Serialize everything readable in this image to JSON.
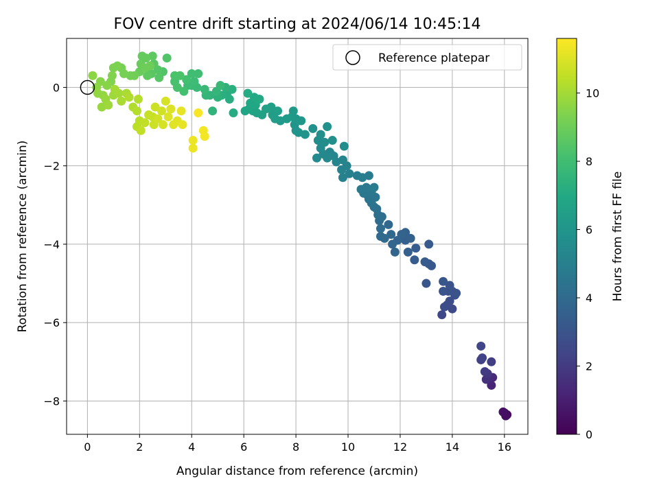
{
  "chart_data": {
    "type": "scatter",
    "title": "FOV centre drift starting at 2024/06/14 10:45:14",
    "xlabel": "Angular distance from reference (arcmin)",
    "ylabel": "Rotation from reference (arcmin)",
    "xlim": [
      -0.8,
      16.9
    ],
    "ylim": [
      -8.85,
      1.25
    ],
    "xticks": [
      0,
      2,
      4,
      6,
      8,
      10,
      12,
      14,
      16
    ],
    "yticks": [
      -8,
      -6,
      -4,
      -2,
      0
    ],
    "xtick_labels": [
      "0",
      "2",
      "4",
      "6",
      "8",
      "10",
      "12",
      "14",
      "16"
    ],
    "ytick_labels": [
      "−8",
      "−6",
      "−4",
      "−2",
      "0"
    ],
    "grid": true,
    "legend": {
      "position": "top-right",
      "entries": [
        "Reference platepar"
      ]
    },
    "reference_point": {
      "x": 0,
      "y": 0
    },
    "colorbar": {
      "label": "Hours from first FF file",
      "colormap": "viridis",
      "range": [
        0,
        11.6
      ],
      "ticks": [
        0,
        2,
        4,
        6,
        8,
        10
      ],
      "tick_labels": [
        "0",
        "2",
        "4",
        "6",
        "8",
        "10"
      ]
    },
    "series": [
      {
        "columns": [
          "x",
          "y",
          "hours"
        ],
        "points": [
          [
            16.0,
            -8.3,
            0.2
          ],
          [
            16.1,
            -8.35,
            0.3
          ],
          [
            16.05,
            -8.38,
            0.4
          ],
          [
            15.95,
            -8.28,
            0.5
          ],
          [
            15.5,
            -7.6,
            1.2
          ],
          [
            15.55,
            -7.4,
            1.4
          ],
          [
            15.3,
            -7.45,
            1.6
          ],
          [
            15.35,
            -7.3,
            1.8
          ],
          [
            15.25,
            -7.25,
            2.0
          ],
          [
            15.5,
            -7.0,
            2.1
          ],
          [
            15.1,
            -6.95,
            2.2
          ],
          [
            15.15,
            -6.9,
            2.3
          ],
          [
            15.1,
            -6.6,
            2.4
          ],
          [
            13.6,
            -5.8,
            2.5
          ],
          [
            13.8,
            -5.55,
            2.6
          ],
          [
            14.0,
            -5.65,
            2.6
          ],
          [
            13.7,
            -5.6,
            2.7
          ],
          [
            13.9,
            -5.45,
            2.7
          ],
          [
            14.1,
            -5.3,
            2.8
          ],
          [
            13.85,
            -5.2,
            2.8
          ],
          [
            14.0,
            -5.2,
            2.9
          ],
          [
            14.15,
            -5.25,
            2.9
          ],
          [
            13.65,
            -5.2,
            3.0
          ],
          [
            13.9,
            -5.05,
            3.0
          ],
          [
            13.65,
            -4.95,
            3.1
          ],
          [
            13.0,
            -5.0,
            3.1
          ],
          [
            13.1,
            -4.5,
            3.2
          ],
          [
            13.2,
            -4.55,
            3.2
          ],
          [
            12.95,
            -4.45,
            3.3
          ],
          [
            13.1,
            -4.0,
            3.3
          ],
          [
            12.55,
            -4.4,
            3.4
          ],
          [
            12.6,
            -4.1,
            3.4
          ],
          [
            12.3,
            -4.2,
            3.5
          ],
          [
            12.2,
            -3.9,
            3.5
          ],
          [
            12.4,
            -3.85,
            3.6
          ],
          [
            12.2,
            -3.7,
            3.6
          ],
          [
            12.05,
            -3.75,
            3.7
          ],
          [
            11.9,
            -3.9,
            3.7
          ],
          [
            11.8,
            -4.2,
            3.8
          ],
          [
            11.7,
            -4.0,
            3.8
          ],
          [
            11.65,
            -3.75,
            3.9
          ],
          [
            11.55,
            -3.5,
            3.9
          ],
          [
            11.4,
            -3.85,
            4.0
          ],
          [
            11.25,
            -3.8,
            4.0
          ],
          [
            11.25,
            -3.6,
            4.1
          ],
          [
            11.2,
            -3.4,
            4.1
          ],
          [
            11.3,
            -3.3,
            4.2
          ],
          [
            11.15,
            -3.25,
            4.2
          ],
          [
            11.1,
            -3.1,
            4.3
          ],
          [
            11.0,
            -3.05,
            4.3
          ],
          [
            10.9,
            -2.95,
            4.4
          ],
          [
            10.8,
            -2.85,
            4.4
          ],
          [
            11.05,
            -2.8,
            4.5
          ],
          [
            10.75,
            -2.75,
            4.5
          ],
          [
            10.6,
            -2.7,
            4.6
          ],
          [
            10.9,
            -2.65,
            4.6
          ],
          [
            10.5,
            -2.6,
            4.7
          ],
          [
            10.7,
            -2.55,
            4.7
          ],
          [
            11.0,
            -2.55,
            4.8
          ],
          [
            10.8,
            -2.25,
            4.8
          ],
          [
            10.55,
            -2.3,
            4.9
          ],
          [
            10.35,
            -2.25,
            4.9
          ],
          [
            10.05,
            -2.2,
            5.0
          ],
          [
            9.8,
            -2.3,
            5.0
          ],
          [
            9.75,
            -2.1,
            5.1
          ],
          [
            9.95,
            -2.0,
            5.1
          ],
          [
            9.8,
            -1.85,
            5.2
          ],
          [
            9.55,
            -1.9,
            5.2
          ],
          [
            9.45,
            -1.75,
            5.3
          ],
          [
            9.3,
            -1.65,
            5.3
          ],
          [
            9.2,
            -1.8,
            5.4
          ],
          [
            9.05,
            -1.7,
            5.4
          ],
          [
            8.8,
            -1.8,
            5.5
          ],
          [
            8.95,
            -1.55,
            5.5
          ],
          [
            9.1,
            -1.4,
            5.6
          ],
          [
            8.85,
            -1.35,
            5.6
          ],
          [
            8.95,
            -1.2,
            5.7
          ],
          [
            9.85,
            -1.5,
            5.6
          ],
          [
            9.4,
            -1.35,
            5.7
          ],
          [
            9.2,
            -1.0,
            5.8
          ],
          [
            8.65,
            -1.05,
            5.8
          ],
          [
            8.35,
            -1.2,
            5.9
          ],
          [
            8.1,
            -1.15,
            5.9
          ],
          [
            8.0,
            -1.1,
            6.0
          ],
          [
            7.95,
            -0.95,
            6.0
          ],
          [
            8.2,
            -0.85,
            6.1
          ],
          [
            8.0,
            -0.8,
            6.1
          ],
          [
            7.85,
            -0.75,
            6.2
          ],
          [
            7.9,
            -0.6,
            6.2
          ],
          [
            7.65,
            -0.8,
            6.3
          ],
          [
            7.4,
            -0.85,
            6.3
          ],
          [
            7.2,
            -0.8,
            6.4
          ],
          [
            7.1,
            -0.7,
            6.4
          ],
          [
            7.3,
            -0.6,
            6.5
          ],
          [
            7.05,
            -0.5,
            6.5
          ],
          [
            6.85,
            -0.55,
            6.6
          ],
          [
            6.7,
            -0.7,
            6.6
          ],
          [
            6.5,
            -0.65,
            6.7
          ],
          [
            6.35,
            -0.6,
            6.7
          ],
          [
            6.2,
            -0.55,
            6.8
          ],
          [
            6.05,
            -0.6,
            6.8
          ],
          [
            6.45,
            -0.45,
            6.9
          ],
          [
            6.25,
            -0.4,
            6.9
          ],
          [
            6.6,
            -0.3,
            7.0
          ],
          [
            6.4,
            -0.25,
            7.0
          ],
          [
            6.15,
            -0.15,
            7.1
          ],
          [
            5.6,
            -0.65,
            7.1
          ],
          [
            5.45,
            -0.3,
            7.2
          ],
          [
            5.35,
            -0.15,
            7.2
          ],
          [
            5.15,
            -0.2,
            7.3
          ],
          [
            5.55,
            -0.05,
            7.3
          ],
          [
            5.3,
            0.0,
            7.4
          ],
          [
            5.0,
            -0.25,
            7.4
          ],
          [
            4.8,
            -0.6,
            7.5
          ],
          [
            4.7,
            -0.2,
            7.5
          ],
          [
            4.55,
            -0.2,
            7.6
          ],
          [
            4.95,
            -0.1,
            7.6
          ],
          [
            5.1,
            0.05,
            7.7
          ],
          [
            4.5,
            -0.05,
            7.7
          ],
          [
            4.2,
            0.0,
            7.8
          ],
          [
            4.0,
            0.05,
            7.8
          ],
          [
            3.85,
            0.05,
            7.9
          ],
          [
            4.1,
            0.15,
            7.9
          ],
          [
            4.0,
            0.35,
            8.0
          ],
          [
            4.25,
            0.35,
            8.0
          ],
          [
            3.8,
            0.2,
            8.1
          ],
          [
            3.7,
            -0.1,
            8.1
          ],
          [
            3.45,
            0.0,
            8.2
          ],
          [
            3.35,
            0.15,
            8.2
          ],
          [
            3.55,
            0.3,
            8.3
          ],
          [
            3.35,
            0.3,
            8.3
          ],
          [
            3.05,
            0.75,
            8.4
          ],
          [
            2.9,
            0.4,
            8.4
          ],
          [
            2.75,
            0.25,
            8.5
          ],
          [
            2.7,
            0.45,
            8.5
          ],
          [
            2.55,
            0.6,
            8.6
          ],
          [
            2.45,
            0.35,
            8.6
          ],
          [
            2.3,
            0.3,
            8.7
          ],
          [
            2.5,
            0.8,
            8.7
          ],
          [
            2.25,
            0.75,
            8.8
          ],
          [
            2.1,
            0.8,
            8.8
          ],
          [
            2.05,
            0.6,
            8.9
          ],
          [
            2.0,
            0.4,
            8.9
          ],
          [
            2.2,
            0.5,
            9.0
          ],
          [
            2.4,
            0.55,
            9.0
          ],
          [
            1.8,
            0.3,
            9.1
          ],
          [
            1.65,
            0.3,
            9.1
          ],
          [
            1.4,
            0.35,
            9.2
          ],
          [
            1.3,
            0.5,
            9.2
          ],
          [
            1.15,
            0.55,
            9.3
          ],
          [
            1.0,
            0.5,
            9.3
          ],
          [
            0.95,
            0.3,
            9.4
          ],
          [
            0.9,
            0.15,
            9.4
          ],
          [
            0.75,
            0.05,
            9.5
          ],
          [
            0.5,
            0.15,
            9.5
          ],
          [
            0.35,
            0.0,
            9.6
          ],
          [
            0.2,
            0.3,
            9.6
          ],
          [
            0.4,
            -0.15,
            9.7
          ],
          [
            0.6,
            -0.2,
            9.7
          ],
          [
            0.7,
            -0.3,
            9.8
          ],
          [
            0.55,
            -0.5,
            9.8
          ],
          [
            0.8,
            -0.45,
            9.9
          ],
          [
            1.0,
            -0.2,
            9.9
          ],
          [
            1.05,
            -0.05,
            10.0
          ],
          [
            1.2,
            -0.15,
            10.0
          ],
          [
            1.3,
            -0.35,
            10.1
          ],
          [
            1.5,
            -0.15,
            10.1
          ],
          [
            1.6,
            -0.25,
            10.2
          ],
          [
            1.75,
            -0.5,
            10.2
          ],
          [
            1.9,
            -0.6,
            10.3
          ],
          [
            1.95,
            -0.3,
            10.3
          ],
          [
            2.0,
            -0.85,
            10.4
          ],
          [
            1.9,
            -1.0,
            10.4
          ],
          [
            2.05,
            -1.1,
            10.5
          ],
          [
            2.2,
            -0.9,
            10.5
          ],
          [
            2.35,
            -0.7,
            10.6
          ],
          [
            2.5,
            -0.75,
            10.6
          ],
          [
            2.6,
            -0.5,
            10.7
          ],
          [
            2.55,
            -0.95,
            10.7
          ],
          [
            2.7,
            -0.8,
            10.8
          ],
          [
            2.85,
            -0.6,
            10.8
          ],
          [
            2.9,
            -0.95,
            10.9
          ],
          [
            3.0,
            -0.35,
            10.9
          ],
          [
            3.1,
            -0.75,
            11.0
          ],
          [
            3.2,
            -0.55,
            11.0
          ],
          [
            3.3,
            -0.95,
            11.1
          ],
          [
            3.45,
            -0.85,
            11.1
          ],
          [
            3.6,
            -0.6,
            11.2
          ],
          [
            3.65,
            -0.95,
            11.2
          ],
          [
            4.05,
            -1.35,
            11.3
          ],
          [
            4.05,
            -1.55,
            11.3
          ],
          [
            4.45,
            -1.1,
            11.4
          ],
          [
            4.5,
            -1.25,
            11.4
          ],
          [
            4.25,
            -0.65,
            11.5
          ]
        ]
      }
    ]
  }
}
